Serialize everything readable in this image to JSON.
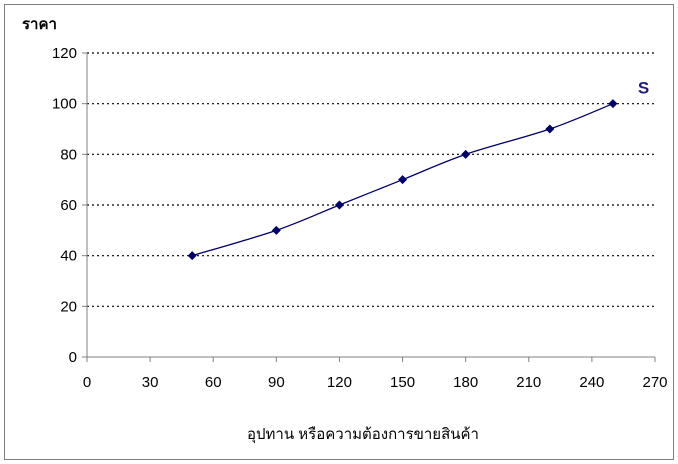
{
  "chart_data": {
    "type": "line",
    "title": "",
    "ylabel": "ราคา",
    "xlabel": "อุปทาน หรือความต้องการขายสินค้า",
    "xlim": [
      0,
      270
    ],
    "ylim": [
      0,
      120
    ],
    "x_ticks": [
      0,
      30,
      60,
      90,
      120,
      150,
      180,
      210,
      240,
      270
    ],
    "y_ticks": [
      0,
      20,
      40,
      60,
      80,
      100,
      120
    ],
    "grid": "horizontal dotted",
    "legend": "none",
    "series": [
      {
        "name": "S",
        "color": "#000066",
        "marker": "diamond",
        "points": [
          {
            "x": 50,
            "y": 40
          },
          {
            "x": 90,
            "y": 50
          },
          {
            "x": 120,
            "y": 60
          },
          {
            "x": 150,
            "y": 70
          },
          {
            "x": 180,
            "y": 80
          },
          {
            "x": 220,
            "y": 90
          },
          {
            "x": 250,
            "y": 100
          }
        ]
      }
    ]
  }
}
